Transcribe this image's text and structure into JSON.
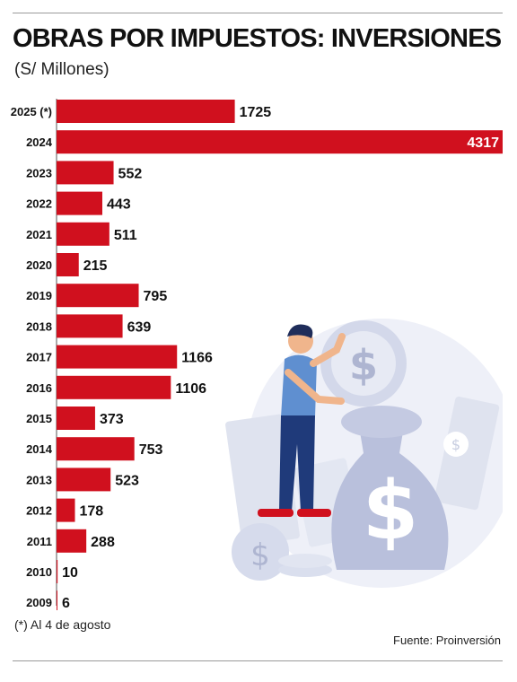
{
  "title": "OBRAS POR IMPUESTOS: INVERSIONES",
  "subtitle": "(S/ Millones)",
  "footnote": "(*) Al 4 de agosto",
  "source": "Fuente: Proinversión",
  "colors": {
    "bar": "#d0101e",
    "text": "#111111",
    "rule": "#9a9a9a"
  },
  "chart_data": {
    "type": "bar",
    "orientation": "horizontal",
    "categories": [
      "2025 (*)",
      "2024",
      "2023",
      "2022",
      "2021",
      "2020",
      "2019",
      "2018",
      "2017",
      "2016",
      "2015",
      "2014",
      "2013",
      "2012",
      "2011",
      "2010",
      "2009"
    ],
    "values": [
      1725,
      4317,
      552,
      443,
      511,
      215,
      795,
      639,
      1166,
      1106,
      373,
      753,
      523,
      178,
      288,
      10,
      6
    ],
    "xlim": [
      0,
      4317
    ],
    "grid": false,
    "legend": "none"
  }
}
